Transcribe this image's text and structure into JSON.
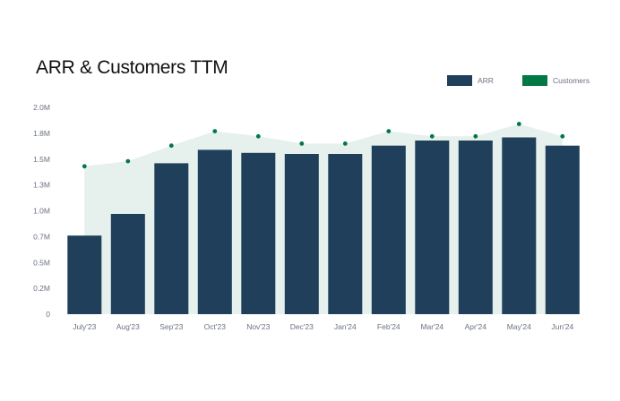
{
  "colors": {
    "bar": "#1f3f5b",
    "area": "#e6f0ec",
    "dot": "#047844",
    "text": "#6b7280"
  },
  "chart_data": {
    "type": "bar",
    "title": "ARR & Customers TTM",
    "categories": [
      "July'23",
      "Aug'23",
      "Sep'23",
      "Oct'23",
      "Nov'23",
      "Dec'23",
      "Jan'24",
      "Feb'24",
      "Mar'24",
      "Apr'24",
      "May'24",
      "Jun'24"
    ],
    "yticks": [
      "0",
      "0.2M",
      "0.5M",
      "0.7M",
      "1.0M",
      "1.3M",
      "1.5M",
      "1.8M",
      "2.0M"
    ],
    "ylim": [
      0,
      2000000
    ],
    "legend_position": "top-right",
    "grid": false,
    "series": [
      {
        "name": "ARR",
        "kind": "bar",
        "values": [
          760000,
          970000,
          1460000,
          1590000,
          1560000,
          1550000,
          1550000,
          1630000,
          1680000,
          1680000,
          1710000,
          1630000
        ]
      },
      {
        "name": "Customers",
        "kind": "area-dots",
        "values": [
          1430000,
          1480000,
          1630000,
          1770000,
          1720000,
          1650000,
          1650000,
          1770000,
          1720000,
          1720000,
          1840000,
          1720000
        ]
      }
    ]
  }
}
